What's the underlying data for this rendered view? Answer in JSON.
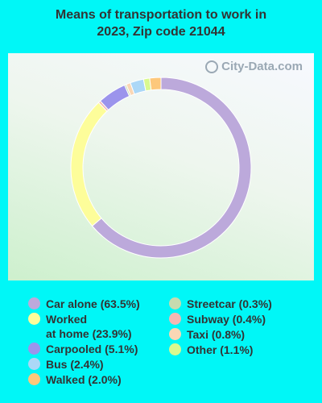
{
  "title_line1": "Means of transportation to work in",
  "title_line2": "2023, Zip code 21044",
  "watermark": "City-Data.com",
  "chart_data": {
    "type": "pie",
    "donut": true,
    "title": "Means of transportation to work in 2023, Zip code 21044",
    "categories": [
      "Car alone",
      "Worked at home",
      "Carpooled",
      "Bus",
      "Walked",
      "Streetcar",
      "Subway",
      "Taxi",
      "Other"
    ],
    "values": [
      63.5,
      23.9,
      5.1,
      2.4,
      2.0,
      0.3,
      0.4,
      0.8,
      1.1
    ],
    "colors": {
      "Car alone": "#bca9db",
      "Worked at home": "#fdfd9a",
      "Carpooled": "#9b94ec",
      "Bus": "#acd8f7",
      "Walked": "#fdc87b",
      "Streetcar": "#c7dbaf",
      "Subway": "#f3b8b3",
      "Taxi": "#f9d7b5",
      "Other": "#d9f98f"
    },
    "order_clockwise_from_top": [
      "Car alone",
      "Worked at home",
      "Subway",
      "Carpooled",
      "Streetcar",
      "Taxi",
      "Bus",
      "Other",
      "Walked"
    ],
    "legend_placement": "bottom"
  },
  "legend": {
    "col1": [
      {
        "key": "Car alone",
        "lines": [
          "Car alone (63.5%)"
        ]
      },
      {
        "key": "Worked at home",
        "lines": [
          "Worked",
          "at home (23.9%)"
        ]
      },
      {
        "key": "Carpooled",
        "lines": [
          "Carpooled (5.1%)"
        ]
      },
      {
        "key": "Bus",
        "lines": [
          "Bus (2.4%)"
        ]
      },
      {
        "key": "Walked",
        "lines": [
          "Walked (2.0%)"
        ]
      }
    ],
    "col2": [
      {
        "key": "Streetcar",
        "lines": [
          "Streetcar (0.3%)"
        ]
      },
      {
        "key": "Subway",
        "lines": [
          "Subway (0.4%)"
        ]
      },
      {
        "key": "Taxi",
        "lines": [
          "Taxi (0.8%)"
        ]
      },
      {
        "key": "Other",
        "lines": [
          "Other (1.1%)"
        ]
      }
    ]
  }
}
